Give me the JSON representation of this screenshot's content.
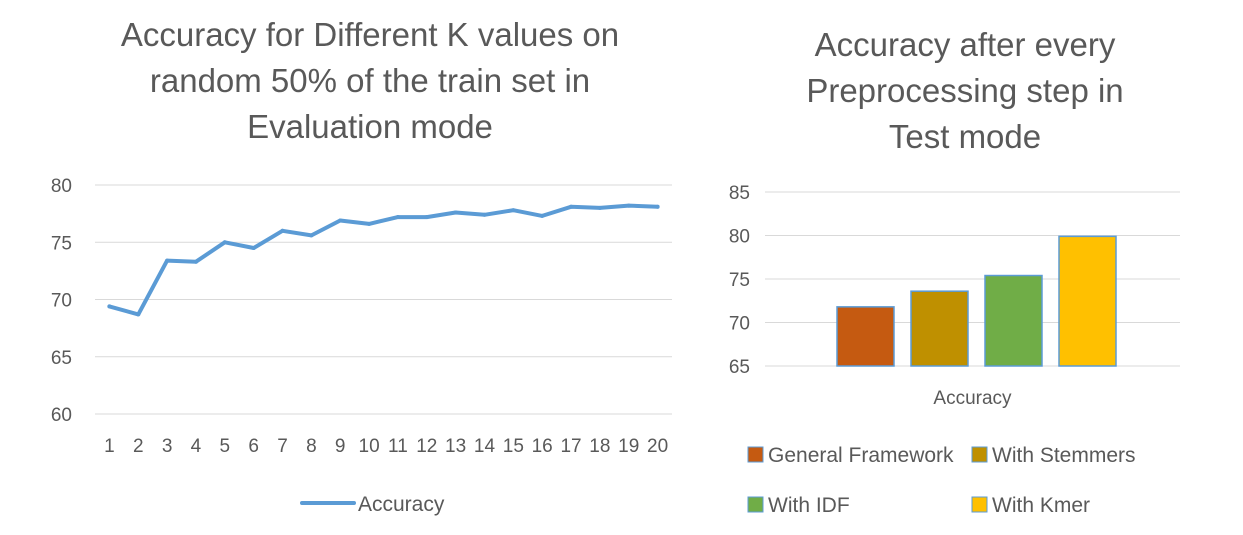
{
  "chart_data": [
    {
      "type": "line",
      "title": "Accuracy for Different K values on\nrandom 50% of the train set in\nEvaluation mode",
      "x": [
        "1",
        "2",
        "3",
        "4",
        "5",
        "6",
        "7",
        "8",
        "9",
        "10",
        "11",
        "12",
        "13",
        "14",
        "15",
        "16",
        "17",
        "18",
        "19",
        "20"
      ],
      "series": [
        {
          "name": "Accuracy",
          "color": "#5B9BD5",
          "values": [
            69.4,
            68.7,
            73.4,
            73.3,
            75.0,
            74.5,
            76.0,
            75.6,
            76.9,
            76.6,
            77.2,
            77.2,
            77.6,
            77.4,
            77.8,
            77.3,
            78.1,
            78.0,
            78.2,
            78.1
          ]
        }
      ],
      "yticks": [
        60,
        65,
        70,
        75,
        80
      ],
      "ylim": [
        60,
        80
      ],
      "grid": true,
      "legend": "bottom"
    },
    {
      "type": "bar",
      "title": "Accuracy after every\nPreprocessing step in\nTest mode",
      "categories": [
        "Accuracy"
      ],
      "series": [
        {
          "name": "General Framework",
          "value": 71.8,
          "color": "#C55A11"
        },
        {
          "name": "With Stemmers",
          "value": 73.6,
          "color": "#BF9000"
        },
        {
          "name": "With IDF",
          "value": 75.4,
          "color": "#70AD47"
        },
        {
          "name": "With Kmer",
          "value": 79.9,
          "color": "#FFC000"
        }
      ],
      "yticks": [
        65,
        70,
        75,
        80,
        85
      ],
      "ylim": [
        65,
        85
      ],
      "grid": true,
      "legend": "bottom"
    }
  ]
}
